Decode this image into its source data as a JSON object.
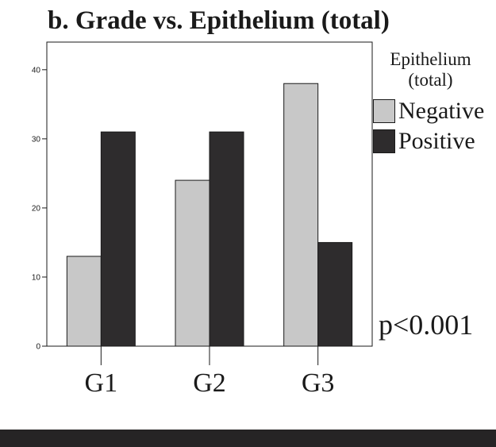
{
  "chart_data": {
    "type": "bar",
    "title": "b. Grade vs. Epithelium (total)",
    "categories": [
      "G1",
      "G2",
      "G3"
    ],
    "series": [
      {
        "name": "Negative",
        "values": [
          13,
          24,
          38
        ],
        "color": "#c8c8c8"
      },
      {
        "name": "Positive",
        "values": [
          31,
          31,
          15
        ],
        "color": "#2e2c2d"
      }
    ],
    "ylim": [
      0,
      44
    ],
    "yticks": [
      0,
      10,
      20,
      30,
      40
    ],
    "legend": {
      "title_line1": "Epithelium",
      "title_line2": "(total)",
      "position": "right"
    },
    "annotation": "p<0.001",
    "grid": false
  }
}
